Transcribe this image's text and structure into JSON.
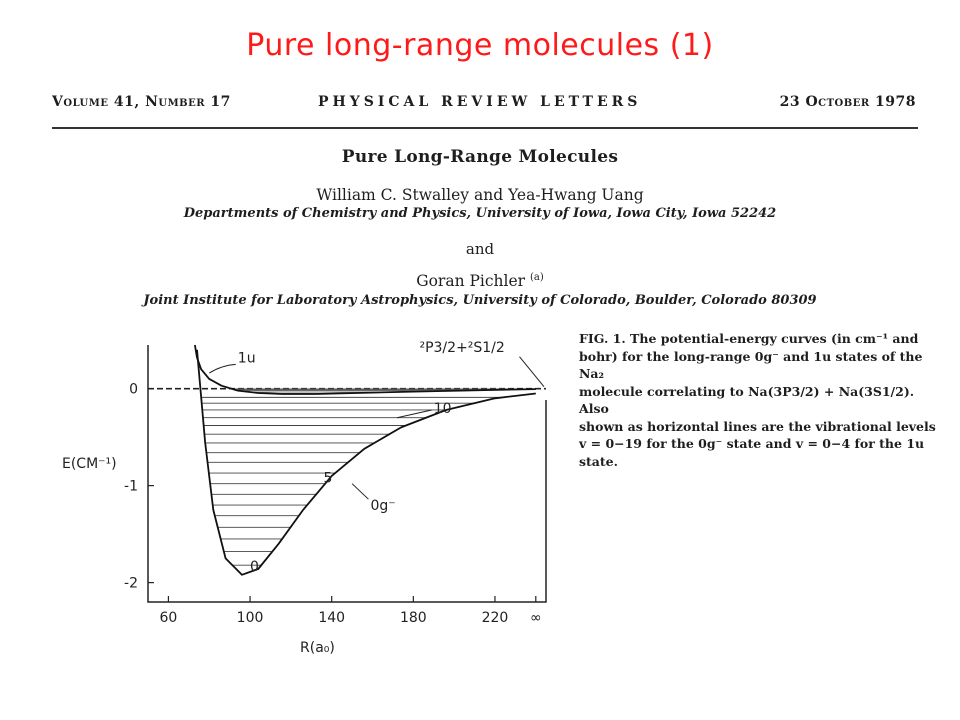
{
  "slide_title": "Pure long-range molecules (1)",
  "journal_header": {
    "volume": "Volume 41, Number 17",
    "journal": "PHYSICAL REVIEW LETTERS",
    "date": "23 October 1978"
  },
  "paper": {
    "title": "Pure Long-Range Molecules",
    "authors1": "William C. Stwalley and Yea-Hwang Uang",
    "affiliation1": "Departments of Chemistry and Physics, University of Iowa, Iowa City, Iowa 52242",
    "and": "and",
    "author2": "Goran Pichler",
    "author2_sup": "(a)",
    "affiliation2": "Joint Institute for Laboratory Astrophysics, University of Colorado, Boulder, Colorado 80309"
  },
  "caption": {
    "line1": "FIG. 1.  The potential-energy curves (in cm⁻¹ and",
    "line2": "bohr) for the long-range 0g⁻ and 1u states of the Na₂",
    "line3": "molecule correlating to Na(3P3/2) + Na(3S1/2).  Also",
    "line4": "shown as horizontal lines are the vibrational levels",
    "line5": "v = 0−19 for the 0g⁻ state and v = 0−4 for the 1u state."
  },
  "chart_data": {
    "type": "line",
    "xlabel": "R(a₀)",
    "ylabel": "E(CM⁻¹)",
    "x_ticks": [
      "60",
      "100",
      "140",
      "180",
      "220",
      "∞"
    ],
    "y_ticks": [
      "0",
      "-1",
      "-2"
    ],
    "xlim": [
      50,
      245
    ],
    "ylim": [
      -2.2,
      0.45
    ],
    "asymptote_label": "²P3/2+²S1/2",
    "series": [
      {
        "name": "0g⁻",
        "label": "0g⁻",
        "x": [
          74,
          78,
          82,
          88,
          96,
          104,
          114,
          126,
          140,
          156,
          174,
          196,
          220,
          240
        ],
        "y": [
          0.4,
          -0.55,
          -1.25,
          -1.75,
          -1.92,
          -1.86,
          -1.6,
          -1.25,
          -0.9,
          -0.62,
          -0.4,
          -0.22,
          -0.1,
          -0.05
        ]
      },
      {
        "name": "1u",
        "label": "1u",
        "x": [
          73,
          74,
          76,
          80,
          86,
          94,
          104,
          116,
          132,
          152,
          180,
          215,
          240
        ],
        "y": [
          0.45,
          0.32,
          0.2,
          0.1,
          0.03,
          -0.02,
          -0.045,
          -0.055,
          -0.055,
          -0.045,
          -0.03,
          -0.015,
          -0.005
        ]
      }
    ],
    "vibrational_levels_0g": [
      -1.82,
      -1.68,
      -1.55,
      -1.43,
      -1.31,
      -1.2,
      -1.09,
      -0.98,
      -0.87,
      -0.76,
      -0.66,
      -0.56,
      -0.47,
      -0.38,
      -0.3,
      -0.22,
      -0.15,
      -0.09,
      -0.04,
      -0.01
    ],
    "vibrational_levels_1u": [
      -0.05,
      -0.035,
      -0.02,
      -0.01,
      -0.003
    ],
    "annotations": [
      "0",
      "5",
      "10"
    ]
  }
}
